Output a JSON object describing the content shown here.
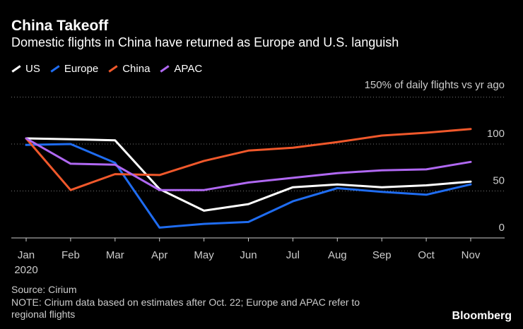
{
  "header": {
    "title": "China Takeoff",
    "subtitle": "Domestic flights in China have returned as Europe and U.S. languish"
  },
  "legend": [
    {
      "name": "US",
      "color": "#ffffff"
    },
    {
      "name": "Europe",
      "color": "#1f6cf0"
    },
    {
      "name": "China",
      "color": "#f0582b"
    },
    {
      "name": "APAC",
      "color": "#b068f2"
    }
  ],
  "footer": {
    "source": "Source: Cirium",
    "note_line1": "NOTE: Cirium data based on estimates after Oct. 22; Europe and APAC refer to",
    "note_line2": "regional flights",
    "brand": "Bloomberg"
  },
  "chart_data": {
    "type": "line",
    "title": "China Takeoff",
    "subtitle": "Domestic flights in China have returned as Europe and U.S. languish",
    "ylabel": "150% of daily flights vs yr ago",
    "xlabel": "",
    "categories": [
      "Jan",
      "Feb",
      "Mar",
      "Apr",
      "May",
      "Jun",
      "Jul",
      "Aug",
      "Sep",
      "Oct",
      "Nov"
    ],
    "x_sublabel": "2020",
    "ylim": [
      0,
      150
    ],
    "yticks": [
      0,
      50,
      100
    ],
    "grid": true,
    "series": [
      {
        "name": "US",
        "color": "#ffffff",
        "values": [
          106,
          105,
          104,
          52,
          29,
          36,
          54,
          57,
          54,
          56,
          60
        ]
      },
      {
        "name": "Europe",
        "color": "#1f6cf0",
        "values": [
          99,
          100,
          80,
          11,
          15,
          17,
          39,
          53,
          49,
          46,
          57
        ]
      },
      {
        "name": "China",
        "color": "#f0582b",
        "values": [
          106,
          51,
          68,
          67,
          82,
          93,
          96,
          102,
          109,
          112,
          116
        ]
      },
      {
        "name": "APAC",
        "color": "#b068f2",
        "values": [
          106,
          79,
          78,
          51,
          51,
          59,
          64,
          69,
          72,
          73,
          81
        ]
      }
    ]
  }
}
